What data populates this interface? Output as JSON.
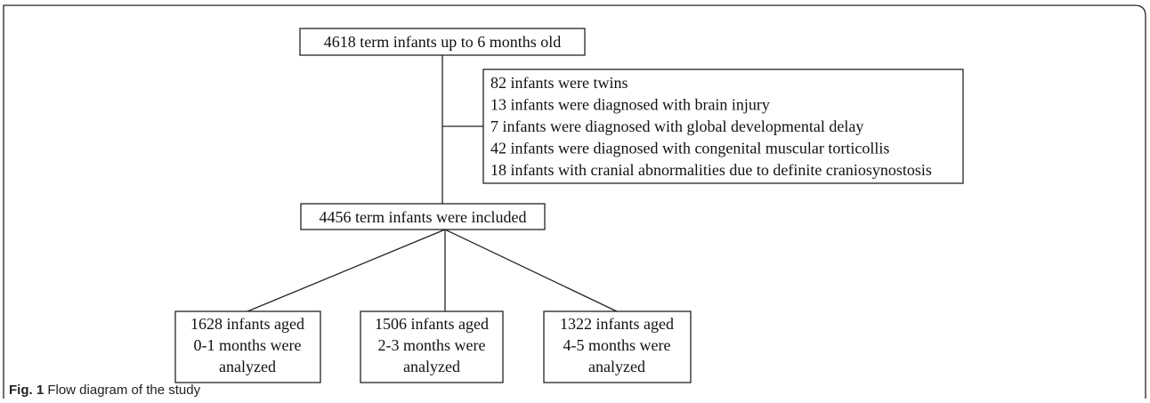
{
  "nodes": [
    {
      "lines": [
        "4618 term infants up to 6 months old"
      ]
    },
    {
      "lines": [
        "82 infants were twins",
        "13 infants were diagnosed with brain injury",
        "7 infants were diagnosed with global developmental delay",
        "42 infants were diagnosed with congenital muscular torticollis",
        "18 infants with cranial abnormalities due to definite craniosynostosis"
      ]
    },
    {
      "lines": [
        "4456 term infants were included"
      ]
    },
    {
      "lines": [
        "1628 infants  aged",
        "0-1 months were",
        "analyzed"
      ]
    },
    {
      "lines": [
        "1506 infants aged",
        "2-3 months were",
        "analyzed"
      ]
    },
    {
      "lines": [
        "1322 infants aged",
        "4-5 months were",
        "analyzed"
      ]
    }
  ],
  "caption": {
    "label": "Fig. 1",
    "text": "Flow diagram of the study"
  }
}
